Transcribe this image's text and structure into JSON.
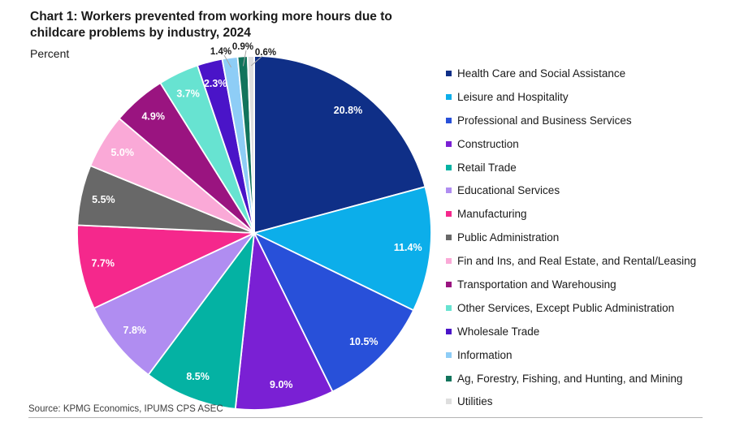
{
  "title": "Chart 1: Workers prevented from working more hours due to childcare problems by industry, 2024",
  "subtitle": "Percent",
  "source": "Source: KPMG Economics, IPUMS CPS ASEC",
  "chart_data": {
    "type": "pie",
    "title": "Chart 1: Workers prevented from working more hours due to childcare problems by industry, 2024",
    "units": "percent",
    "start_angle_deg": 0,
    "direction": "clockwise",
    "legend_position": "right",
    "value_suffix": "%",
    "inside_label_color": "#ffffff",
    "outside_label_color": "#1a1a1a",
    "slice_stroke_color": "#ffffff",
    "slices": [
      {
        "label": "Health Care and Social Assistance",
        "value": 20.8,
        "color": "#0f2f87",
        "label_placement": "inside"
      },
      {
        "label": "Leisure and Hospitality",
        "value": 11.4,
        "color": "#0caeea",
        "label_placement": "inside"
      },
      {
        "label": "Professional and Business Services",
        "value": 10.5,
        "color": "#2850d9",
        "label_placement": "inside"
      },
      {
        "label": "Construction",
        "value": 9.0,
        "color": "#7a20d4",
        "label_placement": "inside"
      },
      {
        "label": "Retail Trade",
        "value": 8.5,
        "color": "#04b2a3",
        "label_placement": "inside"
      },
      {
        "label": "Educational Services",
        "value": 7.8,
        "color": "#b08df1",
        "label_placement": "inside"
      },
      {
        "label": "Manufacturing",
        "value": 7.7,
        "color": "#f5288c",
        "label_placement": "inside"
      },
      {
        "label": "Public Administration",
        "value": 5.5,
        "color": "#686868",
        "label_placement": "inside"
      },
      {
        "label": "Fin and Ins, and Real Estate, and Rental/Leasing",
        "value": 5.0,
        "color": "#faa9d7",
        "label_placement": "inside"
      },
      {
        "label": "Transportation and Warehousing",
        "value": 4.9,
        "color": "#9a1480",
        "label_placement": "inside"
      },
      {
        "label": "Other Services, Except Public Administration",
        "value": 3.7,
        "color": "#67e3d1",
        "label_placement": "inside"
      },
      {
        "label": "Wholesale Trade",
        "value": 2.3,
        "color": "#4a14c8",
        "label_placement": "inside"
      },
      {
        "label": "Information",
        "value": 1.4,
        "color": "#8ecdf6",
        "label_placement": "outside"
      },
      {
        "label": "Ag, Forestry, Fishing, and Hunting, and Mining",
        "value": 0.9,
        "color": "#12745c",
        "label_placement": "outside"
      },
      {
        "label": "Utilities",
        "value": 0.6,
        "color": "#dedede",
        "label_placement": "outside"
      }
    ]
  }
}
